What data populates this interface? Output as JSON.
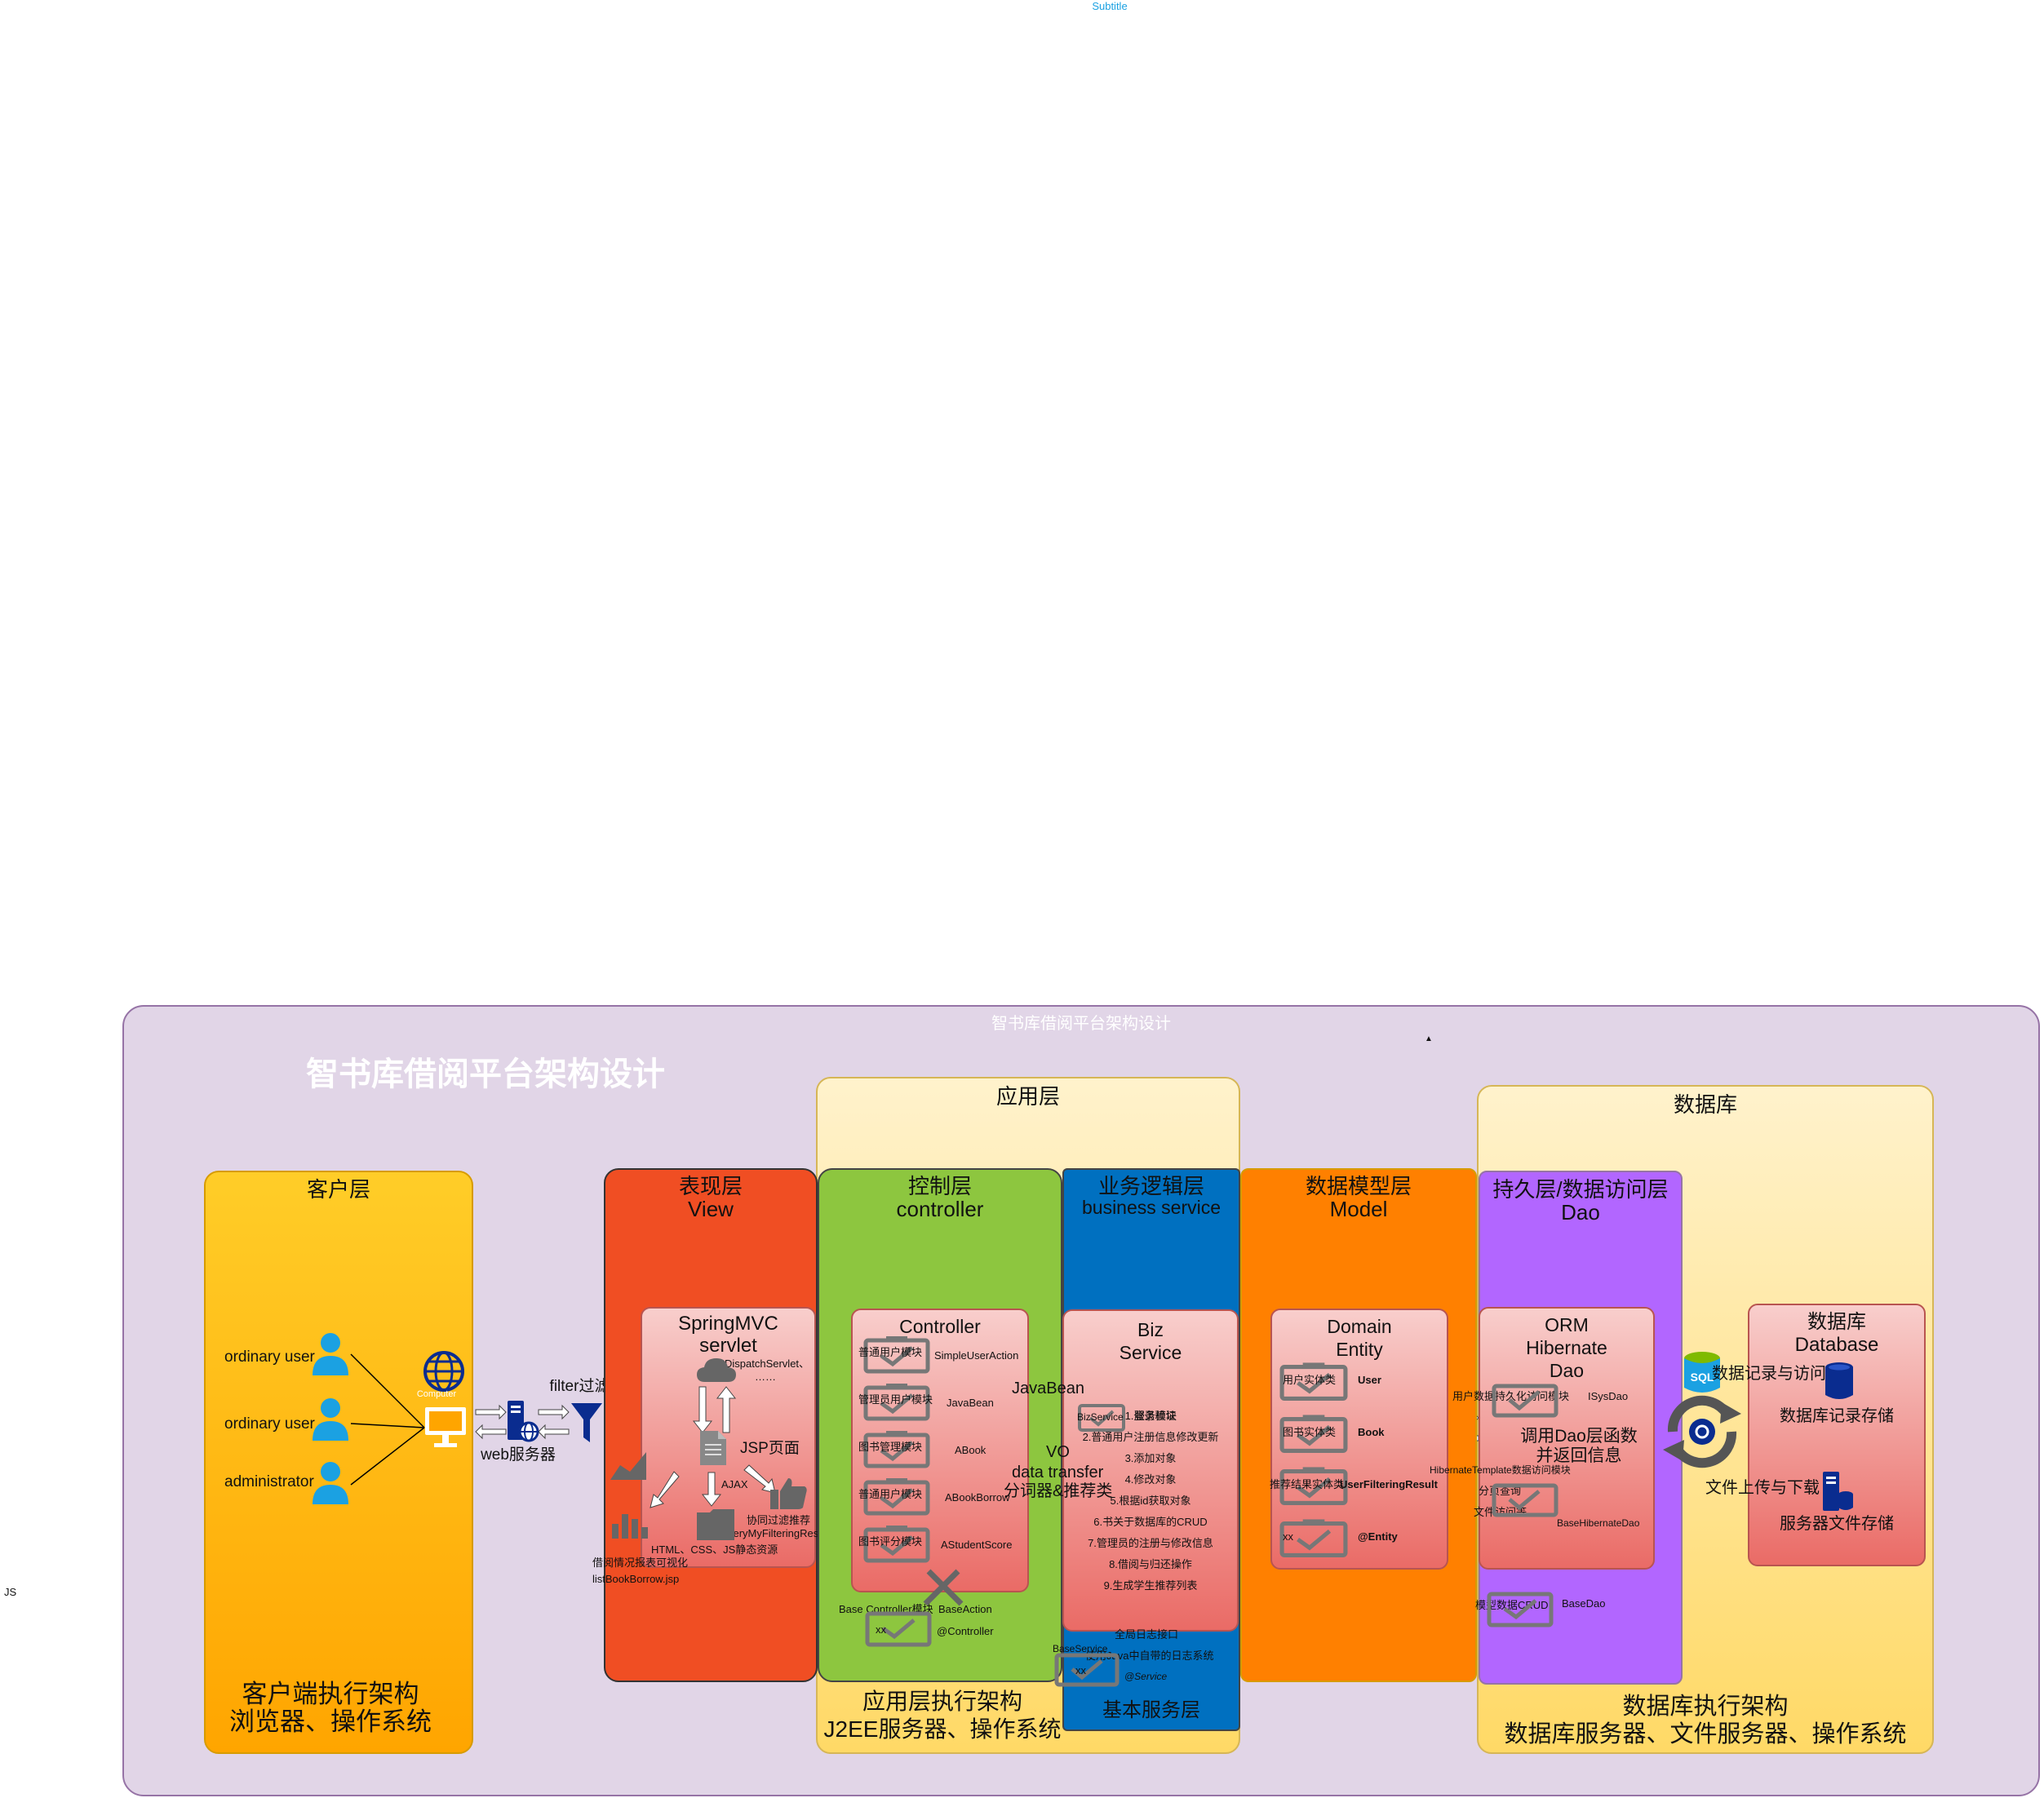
{
  "header": {
    "subtitle": "Subtitle"
  },
  "side_label": "JS",
  "diagram": {
    "frame_title": "智书库借阅平台架构设计",
    "big_title": "智书库借阅平台架构设计",
    "caret": "▲",
    "client_layer": {
      "title": "客户层",
      "users": [
        "ordinary user",
        "ordinary user",
        "administrator"
      ],
      "computer_label": "Computer",
      "footer_line1": "客户端执行架构",
      "footer_line2": "浏览器、操作系统"
    },
    "web_server": "web服务器",
    "filter": "filter过滤器",
    "view_layer": {
      "title": "表现层",
      "subtitle": "View",
      "inner_title1": "SpringMVC",
      "inner_title2": "servlet",
      "dispatch": "DispatchServlet、",
      "dots": "……",
      "jsp": "JSP页面",
      "ajax": "AJAX",
      "recommend": "协同过滤推荐",
      "recommend_page": "queryMyFilteringResult.jsp",
      "static": "HTML、CSS、JS静态资源",
      "report": "借阅情况报表可视化",
      "report_page": "listBookBorrow.jsp"
    },
    "app_layer": {
      "title": "应用层",
      "footer_line1": "应用层执行架构",
      "footer_line2": "J2EE服务器、操作系统"
    },
    "controller_layer": {
      "title": "控制层",
      "subtitle": "controller",
      "inner_title": "Controller",
      "modules": [
        {
          "name": "普通用户模块",
          "cls": "SimpleUserAction"
        },
        {
          "name": "管理员用户模块",
          "cls": "JavaBean"
        },
        {
          "name": "图书管理模块",
          "cls": "ABook"
        },
        {
          "name": "普通用户模块",
          "cls": "ABookBorrow"
        },
        {
          "name": "图书评分模块",
          "cls": "AStudentScore"
        }
      ],
      "base_module": "Base Controller模块",
      "base_action": "BaseAction",
      "annotation": "@Controller",
      "xx": "xx"
    },
    "arrow_labels": {
      "javabean": "JavaBean",
      "vo": "VO",
      "transfer": "data transfer",
      "segmenter": "分词器&推荐类"
    },
    "biz_layer": {
      "title": "业务逻辑层",
      "subtitle": "business service",
      "inner_title1": "Biz",
      "inner_title2": "Service",
      "biz_module": "BizService",
      "module_label": "服务模块",
      "items": [
        "1.登录验证",
        "2.普通用户注册信息修改更新",
        "3.添加对象",
        "4.修改对象",
        "5.根据id获取对象",
        "6.书关于数据库的CRUD",
        "7.管理员的注册与修改信息",
        "8.借阅与归还操作",
        "9.生成学生推荐列表"
      ],
      "log": "全局日志接口",
      "log_detail": "使用Java中自带的日志系统",
      "base_service": "BaseService",
      "annotation": "@Service",
      "xx": "xx",
      "footer": "基本服务层"
    },
    "model_layer": {
      "title": "数据模型层",
      "subtitle": "Model",
      "inner_title1": "Domain",
      "inner_title2": "Entity",
      "entities": [
        {
          "name": "用户实体类",
          "cls": "User"
        },
        {
          "name": "图书实体类",
          "cls": "Book"
        },
        {
          "name": "推荐结果实体类",
          "cls": "UserFilteringResult"
        },
        {
          "name": "xx",
          "cls": "@Entity"
        }
      ]
    },
    "db_layer": {
      "title": "数据库",
      "footer_line1": "数据库执行架构",
      "footer_line2": "数据库服务器、文件服务器、操作系统"
    },
    "dao_layer": {
      "title": "持久层/数据访问层",
      "subtitle": "Dao",
      "inner_title1": "ORM",
      "inner_title2": "Hibernate",
      "inner_title3": "Dao",
      "persist": "用户数据持久化访问模块",
      "isysdao": "ISysDao",
      "call1": "调用Dao层函数",
      "call2": "并返回信息",
      "template": "HibernateTemplate数据访问模块",
      "paging": "分页查询",
      "file_access": "文件访问等",
      "base_hibernate": "BaseHibernateDao",
      "crud": "模型数据CRUD",
      "base_dao": "BaseDao"
    },
    "database": {
      "title1": "数据库",
      "title2": "Database",
      "record": "数据库记录存储",
      "file": "服务器文件存储",
      "record_access": "数据记录与访问",
      "upload": "文件上传与下载",
      "sql": "SQL"
    },
    "colors": {
      "frame_bg": "#e1d5e7",
      "frame_border": "#9673a6",
      "client": "#ffc524",
      "view": "#f04e23",
      "controller": "#8dc63f",
      "biz": "#0070c0",
      "model": "#ff8000",
      "dao": "#b266ff",
      "tier_bg": "#fff2cc",
      "inner_grad_top": "#f8cecc",
      "inner_grad_bottom": "#ea6b66"
    }
  }
}
